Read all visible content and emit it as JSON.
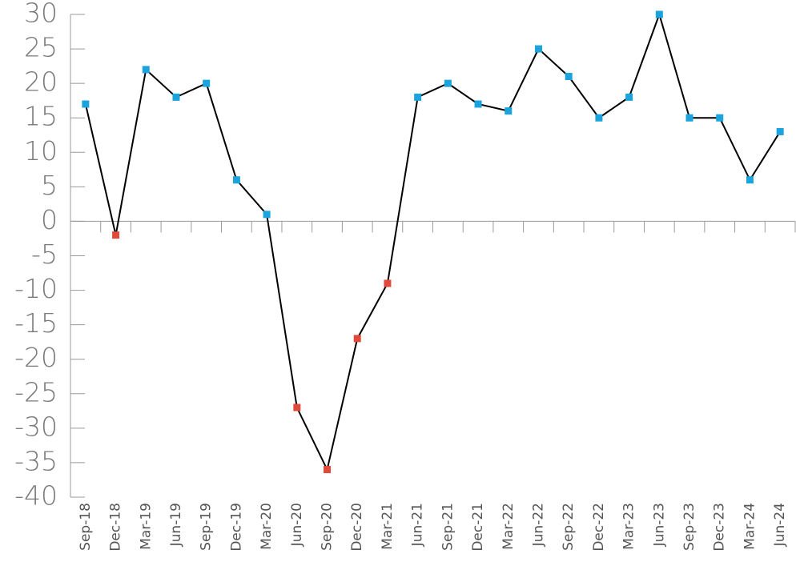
{
  "chart_data": {
    "type": "line",
    "categories": [
      "Sep-18",
      "Dec-18",
      "Mar-19",
      "Jun-19",
      "Sep-19",
      "Dec-19",
      "Mar-20",
      "Jun-20",
      "Sep-20",
      "Dec-20",
      "Mar-21",
      "Jun-21",
      "Sep-21",
      "Dec-21",
      "Mar-22",
      "Jun-22",
      "Sep-22",
      "Dec-22",
      "Mar-23",
      "Jun-23",
      "Sep-23",
      "Dec-23",
      "Mar-24",
      "Jun-24"
    ],
    "values": [
      17,
      -2,
      22,
      18,
      20,
      6,
      1,
      -27,
      -36,
      -17,
      -9,
      18,
      20,
      17,
      16,
      25,
      21,
      15,
      18,
      30,
      15,
      15,
      6,
      13
    ],
    "line_color": "#000000",
    "positive_color": "#1aa3dc",
    "negative_color": "#e04a3b",
    "ylim": [
      -40,
      30
    ],
    "yticks": [
      -40,
      -35,
      -30,
      -25,
      -20,
      -15,
      -10,
      -5,
      0,
      5,
      10,
      15,
      20,
      25,
      30
    ]
  }
}
